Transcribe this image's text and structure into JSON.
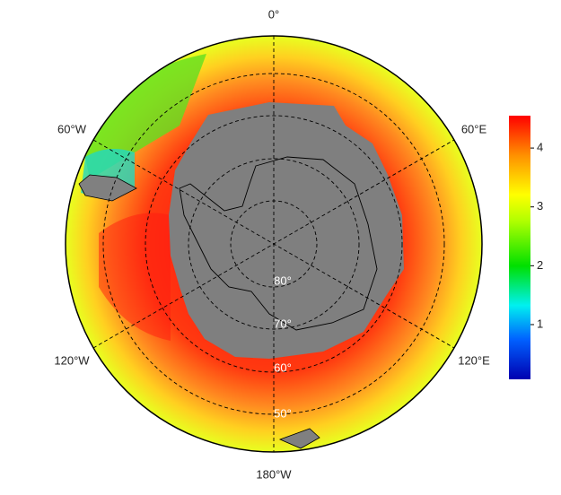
{
  "map": {
    "longitude_labels": [
      "0°",
      "60°E",
      "120°E",
      "180°W",
      "120°W",
      "60°W"
    ],
    "latitude_labels": [
      "80°",
      "70°",
      "60°",
      "50°"
    ],
    "colorbar": {
      "range": [
        0.07,
        4.55
      ],
      "ticks": [
        1,
        2,
        3,
        4
      ]
    }
  }
}
